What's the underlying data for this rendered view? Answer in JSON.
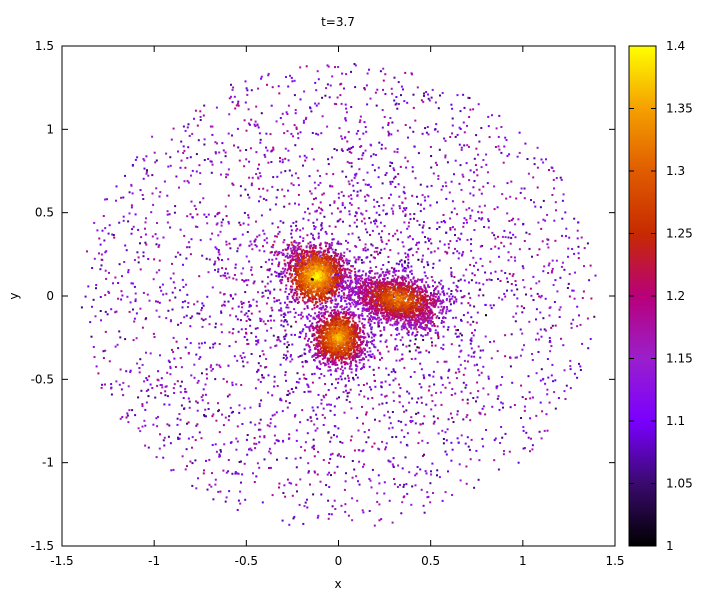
{
  "chart_data": {
    "type": "scatter",
    "title": "t=3.7",
    "xlabel": "x",
    "ylabel": "y",
    "xlim": [
      -1.5,
      1.5
    ],
    "ylim": [
      -1.5,
      1.5
    ],
    "x_ticks": [
      "-1.5",
      "-1",
      "-0.5",
      "0",
      "0.5",
      "1",
      "1.5"
    ],
    "y_ticks": [
      "-1.5",
      "-1",
      "-0.5",
      "0",
      "0.5",
      "1",
      "1.5"
    ],
    "grid": false,
    "colorbar": {
      "range": [
        1,
        1.4
      ],
      "ticks": [
        "1",
        "1.05",
        "1.1",
        "1.15",
        "1.2",
        "1.25",
        "1.3",
        "1.35",
        "1.4"
      ],
      "colormap": [
        "#000000",
        "#3a0a6e",
        "#7a00ff",
        "#9a1fcc",
        "#b8007a",
        "#c72a00",
        "#e05c00",
        "#f5a000",
        "#ffff00"
      ]
    },
    "clusters": [
      {
        "x": -0.12,
        "y": 0.12,
        "value": 1.4
      },
      {
        "x": 0.32,
        "y": -0.02,
        "value": 1.33
      },
      {
        "x": 0.0,
        "y": -0.25,
        "value": 1.37
      }
    ],
    "outer_ring_value_range": [
      1.05,
      1.2
    ],
    "outer_ring_radius_range": [
      0.2,
      1.4
    ]
  }
}
